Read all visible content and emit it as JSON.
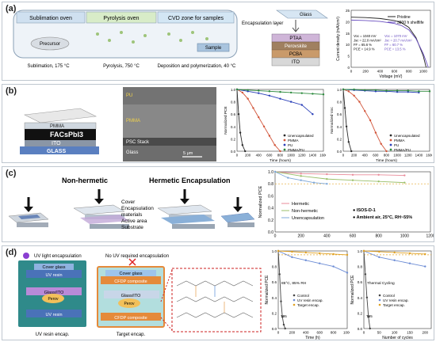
{
  "panels": {
    "a": {
      "label": "(a)",
      "process": [
        "Sublimation oven",
        "Pyrolysis oven",
        "CVD zone for samples"
      ],
      "captions": [
        "Sublimation, 175 °C",
        "Pyrolysis, 750 °C",
        "Deposition and polymerization, 40 °C"
      ],
      "precursor": "Precursor",
      "sample": "Sample",
      "stack": {
        "encapsulation": "Encapsulation layer",
        "glass": "Glass",
        "layers": [
          "PTAA",
          "Perovskite",
          "PCBA",
          "ITO"
        ]
      },
      "jv": {
        "ylabel": "Current density (mA/cm²)",
        "xlabel": "Voltage (mV)",
        "legend": [
          "Pristine",
          "3800 h shelflife"
        ],
        "stats1": [
          "Voc = 1040 mV",
          "Jsc = 22.0 mA/cm²",
          "FF = 65.6 %",
          "PCE = 14.9 %"
        ],
        "stats2": [
          "Voc = 1070 mV",
          "Jsc = 20.7 mA/cm²",
          "FF = 60.7 %",
          "PCE = 13.5 %"
        ],
        "xticks": [
          "0",
          "200",
          "400",
          "600",
          "800",
          "1000"
        ],
        "yticks": [
          "0",
          "5",
          "10",
          "15",
          "20",
          "25"
        ]
      }
    },
    "b": {
      "label": "(b)",
      "stack_layers": [
        "PMMA",
        "FACsPbI3",
        "ITO",
        "GLASS"
      ],
      "sem": {
        "labels": [
          "PU",
          "PMMA",
          "PSC Stack",
          "Glass"
        ],
        "scale": "5 μm"
      },
      "legend": [
        "Unencapsulated",
        "PMMA",
        "PU",
        "PMMA/PU"
      ],
      "xlabel": "Time (hours)",
      "ylabel1": "Normalized PCE",
      "ylabel2": "Normalized Voc",
      "xticks": [
        "0",
        "200",
        "400",
        "600",
        "800",
        "1000",
        "1200",
        "1400",
        "1600"
      ],
      "yticks": [
        "0.0",
        "0.2",
        "0.4",
        "0.6",
        "0.8",
        "1.0"
      ]
    },
    "c": {
      "label": "(c)",
      "titles": [
        "Non-hermetic",
        "Hermetic Encapsulation"
      ],
      "layers": [
        "Cover",
        "Encapsulation",
        "materials",
        "Active area",
        "Substrate"
      ],
      "legend": [
        "Hermetic",
        "Non-hermetic",
        "Unencapsulation"
      ],
      "notes": [
        "ISOS-D-1",
        "Ambient air, 25°C, RH~55%"
      ],
      "ylabel": "Normalized PCE",
      "xticks": [
        "0",
        "200",
        "400",
        "600",
        "800",
        "1000",
        "1200"
      ],
      "yticks": [
        "0.0",
        "0.2",
        "0.4",
        "0.6",
        "0.8",
        "1.0"
      ]
    },
    "d": {
      "label": "(d)",
      "left": {
        "top": "UV light encapsulation",
        "bottom": "UV resin encap.",
        "layers": [
          "Cover glass",
          "UV resin",
          "Glass/ITO",
          "UV resin"
        ],
        "perov": "Perov"
      },
      "mid": {
        "top": "No UV required encapsulation",
        "bottom": "Target encap.",
        "layers": [
          "Cover glass",
          "CFDP composite",
          "Glass/ITO",
          "CFDP composite"
        ],
        "perov": "Perov"
      },
      "plot1": {
        "xlabel": "Time (h)",
        "ylabel": "Normalized PCE",
        "note": "85°C, 85% RH",
        "t95": "T95",
        "xticks": [
          "0",
          "200",
          "400",
          "600",
          "800",
          "1000"
        ]
      },
      "plot2": {
        "xlabel": "Number of cycles",
        "ylabel": "Normalized PCE",
        "note": "Thermal Cycling",
        "t95": "T95",
        "xticks": [
          "0",
          "50",
          "100",
          "150",
          "200"
        ]
      },
      "legend": [
        "Control",
        "UV resin encap.",
        "Target encap."
      ],
      "yticks": [
        "0.0",
        "0.2",
        "0.4",
        "0.6",
        "0.8",
        "1.0"
      ]
    }
  },
  "colors": {
    "unencap": "#2b2b2b",
    "pmma": "#d2553a",
    "pu": "#2a3fb8",
    "pmmapu": "#2e8b3f",
    "hermetic": "#e98b9a",
    "nonherm": "#9bbf6a",
    "unenc2": "#7fa8d8",
    "control": "#444444",
    "uvresin": "#6c8cd5",
    "target": "#e0a020"
  },
  "chart_data": [
    {
      "type": "line",
      "title": "",
      "xlabel": "Voltage (mV)",
      "ylabel": "Current density (mA/cm²)",
      "xlim": [
        0,
        1100
      ],
      "ylim": [
        0,
        25
      ],
      "series": [
        {
          "name": "Pristine",
          "x": [
            0,
            200,
            400,
            600,
            700,
            800,
            900,
            1000,
            1040
          ],
          "y": [
            22.0,
            21.8,
            21.4,
            20.5,
            19.5,
            17.5,
            13.0,
            5.0,
            0
          ]
        },
        {
          "name": "3800 h shelflife",
          "x": [
            0,
            200,
            400,
            600,
            700,
            800,
            900,
            1000,
            1070
          ],
          "y": [
            20.7,
            20.5,
            20.1,
            19.2,
            18.3,
            16.4,
            12.5,
            6.0,
            0
          ]
        }
      ]
    },
    {
      "type": "line",
      "ylabel": "Normalized PCE",
      "xlabel": "Time (hours)",
      "xlim": [
        0,
        1600
      ],
      "ylim": [
        0,
        1.0
      ],
      "series": [
        {
          "name": "Unencapsulated",
          "x": [
            0,
            30,
            60,
            100,
            150
          ],
          "y": [
            1.0,
            0.6,
            0.3,
            0.1,
            0.0
          ]
        },
        {
          "name": "PMMA",
          "x": [
            0,
            100,
            200,
            300,
            400,
            500,
            600,
            700,
            800
          ],
          "y": [
            1.0,
            0.95,
            0.85,
            0.7,
            0.55,
            0.4,
            0.25,
            0.1,
            0.0
          ]
        },
        {
          "name": "PU",
          "x": [
            0,
            200,
            400,
            600,
            800,
            1000,
            1200,
            1400
          ],
          "y": [
            1.0,
            0.97,
            0.94,
            0.9,
            0.85,
            0.8,
            0.75,
            0.6
          ]
        },
        {
          "name": "PMMA/PU",
          "x": [
            0,
            200,
            400,
            600,
            800,
            1000,
            1200,
            1400,
            1600
          ],
          "y": [
            1.0,
            0.99,
            0.98,
            0.97,
            0.96,
            0.95,
            0.94,
            0.93,
            0.92
          ]
        }
      ]
    },
    {
      "type": "line",
      "ylabel": "Normalized Voc",
      "xlabel": "Time (hours)",
      "xlim": [
        0,
        1600
      ],
      "ylim": [
        0,
        1.0
      ],
      "series": [
        {
          "name": "Unencapsulated",
          "x": [
            0,
            30,
            60,
            100,
            150
          ],
          "y": [
            1.0,
            0.7,
            0.4,
            0.15,
            0.0
          ]
        },
        {
          "name": "PMMA",
          "x": [
            0,
            100,
            200,
            300,
            400,
            500,
            600,
            700,
            800
          ],
          "y": [
            1.0,
            0.97,
            0.9,
            0.8,
            0.65,
            0.5,
            0.3,
            0.12,
            0.0
          ]
        },
        {
          "name": "PU",
          "x": [
            0,
            200,
            400,
            600,
            800,
            1000,
            1200,
            1400
          ],
          "y": [
            1.0,
            0.99,
            0.98,
            0.97,
            0.97,
            0.96,
            0.96,
            0.95
          ]
        },
        {
          "name": "PMMA/PU",
          "x": [
            0,
            200,
            400,
            600,
            800,
            1000,
            1200,
            1400,
            1600
          ],
          "y": [
            1.0,
            1.0,
            0.99,
            0.99,
            0.98,
            0.98,
            0.98,
            0.97,
            0.97
          ]
        }
      ]
    },
    {
      "type": "line",
      "ylabel": "Normalized PCE",
      "xlim": [
        0,
        1200
      ],
      "ylim": [
        0,
        1.0
      ],
      "series": [
        {
          "name": "Hermetic",
          "x": [
            0,
            200,
            400,
            600,
            800,
            1000
          ],
          "y": [
            1.0,
            0.97,
            0.96,
            0.95,
            0.95,
            0.94
          ]
        },
        {
          "name": "Non-hermetic",
          "x": [
            0,
            200,
            400,
            600,
            800,
            1000
          ],
          "y": [
            1.0,
            0.93,
            0.88,
            0.86,
            0.84,
            0.82
          ]
        },
        {
          "name": "Unencapsulation",
          "x": [
            0,
            100,
            200,
            300,
            400
          ],
          "y": [
            1.0,
            0.9,
            0.86,
            0.82,
            0.8
          ]
        }
      ]
    },
    {
      "type": "line",
      "ylabel": "Normalized PCE",
      "xlabel": "Time (h)",
      "xlim": [
        0,
        1000
      ],
      "ylim": [
        0,
        1.0
      ],
      "series": [
        {
          "name": "Control",
          "x": [
            0,
            20,
            40,
            60,
            80,
            100
          ],
          "y": [
            1.0,
            0.7,
            0.35,
            0.15,
            0.05,
            0.0
          ]
        },
        {
          "name": "UV resin encap.",
          "x": [
            0,
            200,
            400,
            600,
            800,
            1000
          ],
          "y": [
            1.0,
            0.92,
            0.88,
            0.84,
            0.8,
            0.72
          ]
        },
        {
          "name": "Target encap.",
          "x": [
            0,
            200,
            400,
            600,
            800,
            1000
          ],
          "y": [
            1.0,
            0.99,
            0.98,
            0.97,
            0.96,
            0.95
          ]
        }
      ]
    },
    {
      "type": "line",
      "ylabel": "Normalized PCE",
      "xlabel": "Number of cycles",
      "xlim": [
        0,
        220
      ],
      "ylim": [
        0,
        1.0
      ],
      "series": [
        {
          "name": "Control",
          "x": [
            0,
            5,
            10,
            15,
            20
          ],
          "y": [
            1.0,
            0.7,
            0.4,
            0.15,
            0.0
          ]
        },
        {
          "name": "UV resin encap.",
          "x": [
            0,
            50,
            100,
            150,
            200
          ],
          "y": [
            1.0,
            0.92,
            0.88,
            0.84,
            0.8
          ]
        },
        {
          "name": "Target encap.",
          "x": [
            0,
            50,
            100,
            150,
            200
          ],
          "y": [
            1.0,
            0.99,
            0.98,
            0.97,
            0.96
          ]
        }
      ]
    }
  ]
}
